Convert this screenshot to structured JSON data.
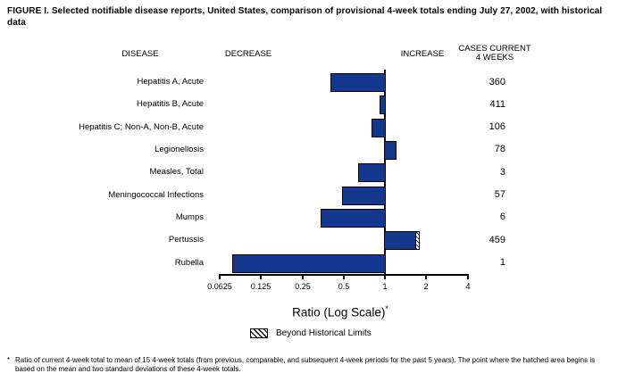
{
  "headers": {
    "disease": "DISEASE",
    "decrease": "DECREASE",
    "increase": "INCREASE",
    "cases_line1": "CASES CURRENT",
    "cases_line2": "4 WEEKS"
  },
  "chart_data": {
    "type": "bar",
    "orientation": "horizontal",
    "scale": "log2",
    "title": "FIGURE I. Selected notifiable disease reports, United States, comparison of provisional 4-week totals ending July 27, 2002, with historical data",
    "xlabel": "Ratio (Log Scale)",
    "xlabel_note_marker": "*",
    "x_ticks": [
      "0.0625",
      "0.125",
      "0.25",
      "0.5",
      "1",
      "2",
      "4"
    ],
    "x_tick_values": [
      0.0625,
      0.125,
      0.25,
      0.5,
      1,
      2,
      4
    ],
    "baseline_ratio": 1,
    "bar_color": "#14388e",
    "rows": [
      {
        "disease": "Hepatitis A, Acute",
        "ratio": 0.4,
        "cases": "360"
      },
      {
        "disease": "Hepatitis B, Acute",
        "ratio": 0.91,
        "cases": "411"
      },
      {
        "disease": "Hepatitis C; Non-A, Non-B, Acute",
        "ratio": 0.8,
        "cases": "106"
      },
      {
        "disease": "Legionellosis",
        "ratio": 1.21,
        "cases": "78"
      },
      {
        "disease": "Measles, Total",
        "ratio": 0.64,
        "cases": "3"
      },
      {
        "disease": "Meningococcal Infections",
        "ratio": 0.49,
        "cases": "57"
      },
      {
        "disease": "Mumps",
        "ratio": 0.34,
        "cases": "6"
      },
      {
        "disease": "Pertussis",
        "ratio": 1.79,
        "cases": "459",
        "beyond_historical_limits": true,
        "hatch_start_ratio": 1.66
      },
      {
        "disease": "Rubella",
        "ratio": 0.077,
        "cases": "1"
      }
    ],
    "legend": {
      "label": "Beyond Historical Limits"
    }
  },
  "footnote": {
    "marker": "*",
    "text": "Ratio of current 4-week total to mean of 15 4-week totals (from previous, comparable, and subsequent 4-week periods for the past 5 years). The point where the hatched area begins is based on the mean and two standard deviations of these 4-week totals."
  }
}
